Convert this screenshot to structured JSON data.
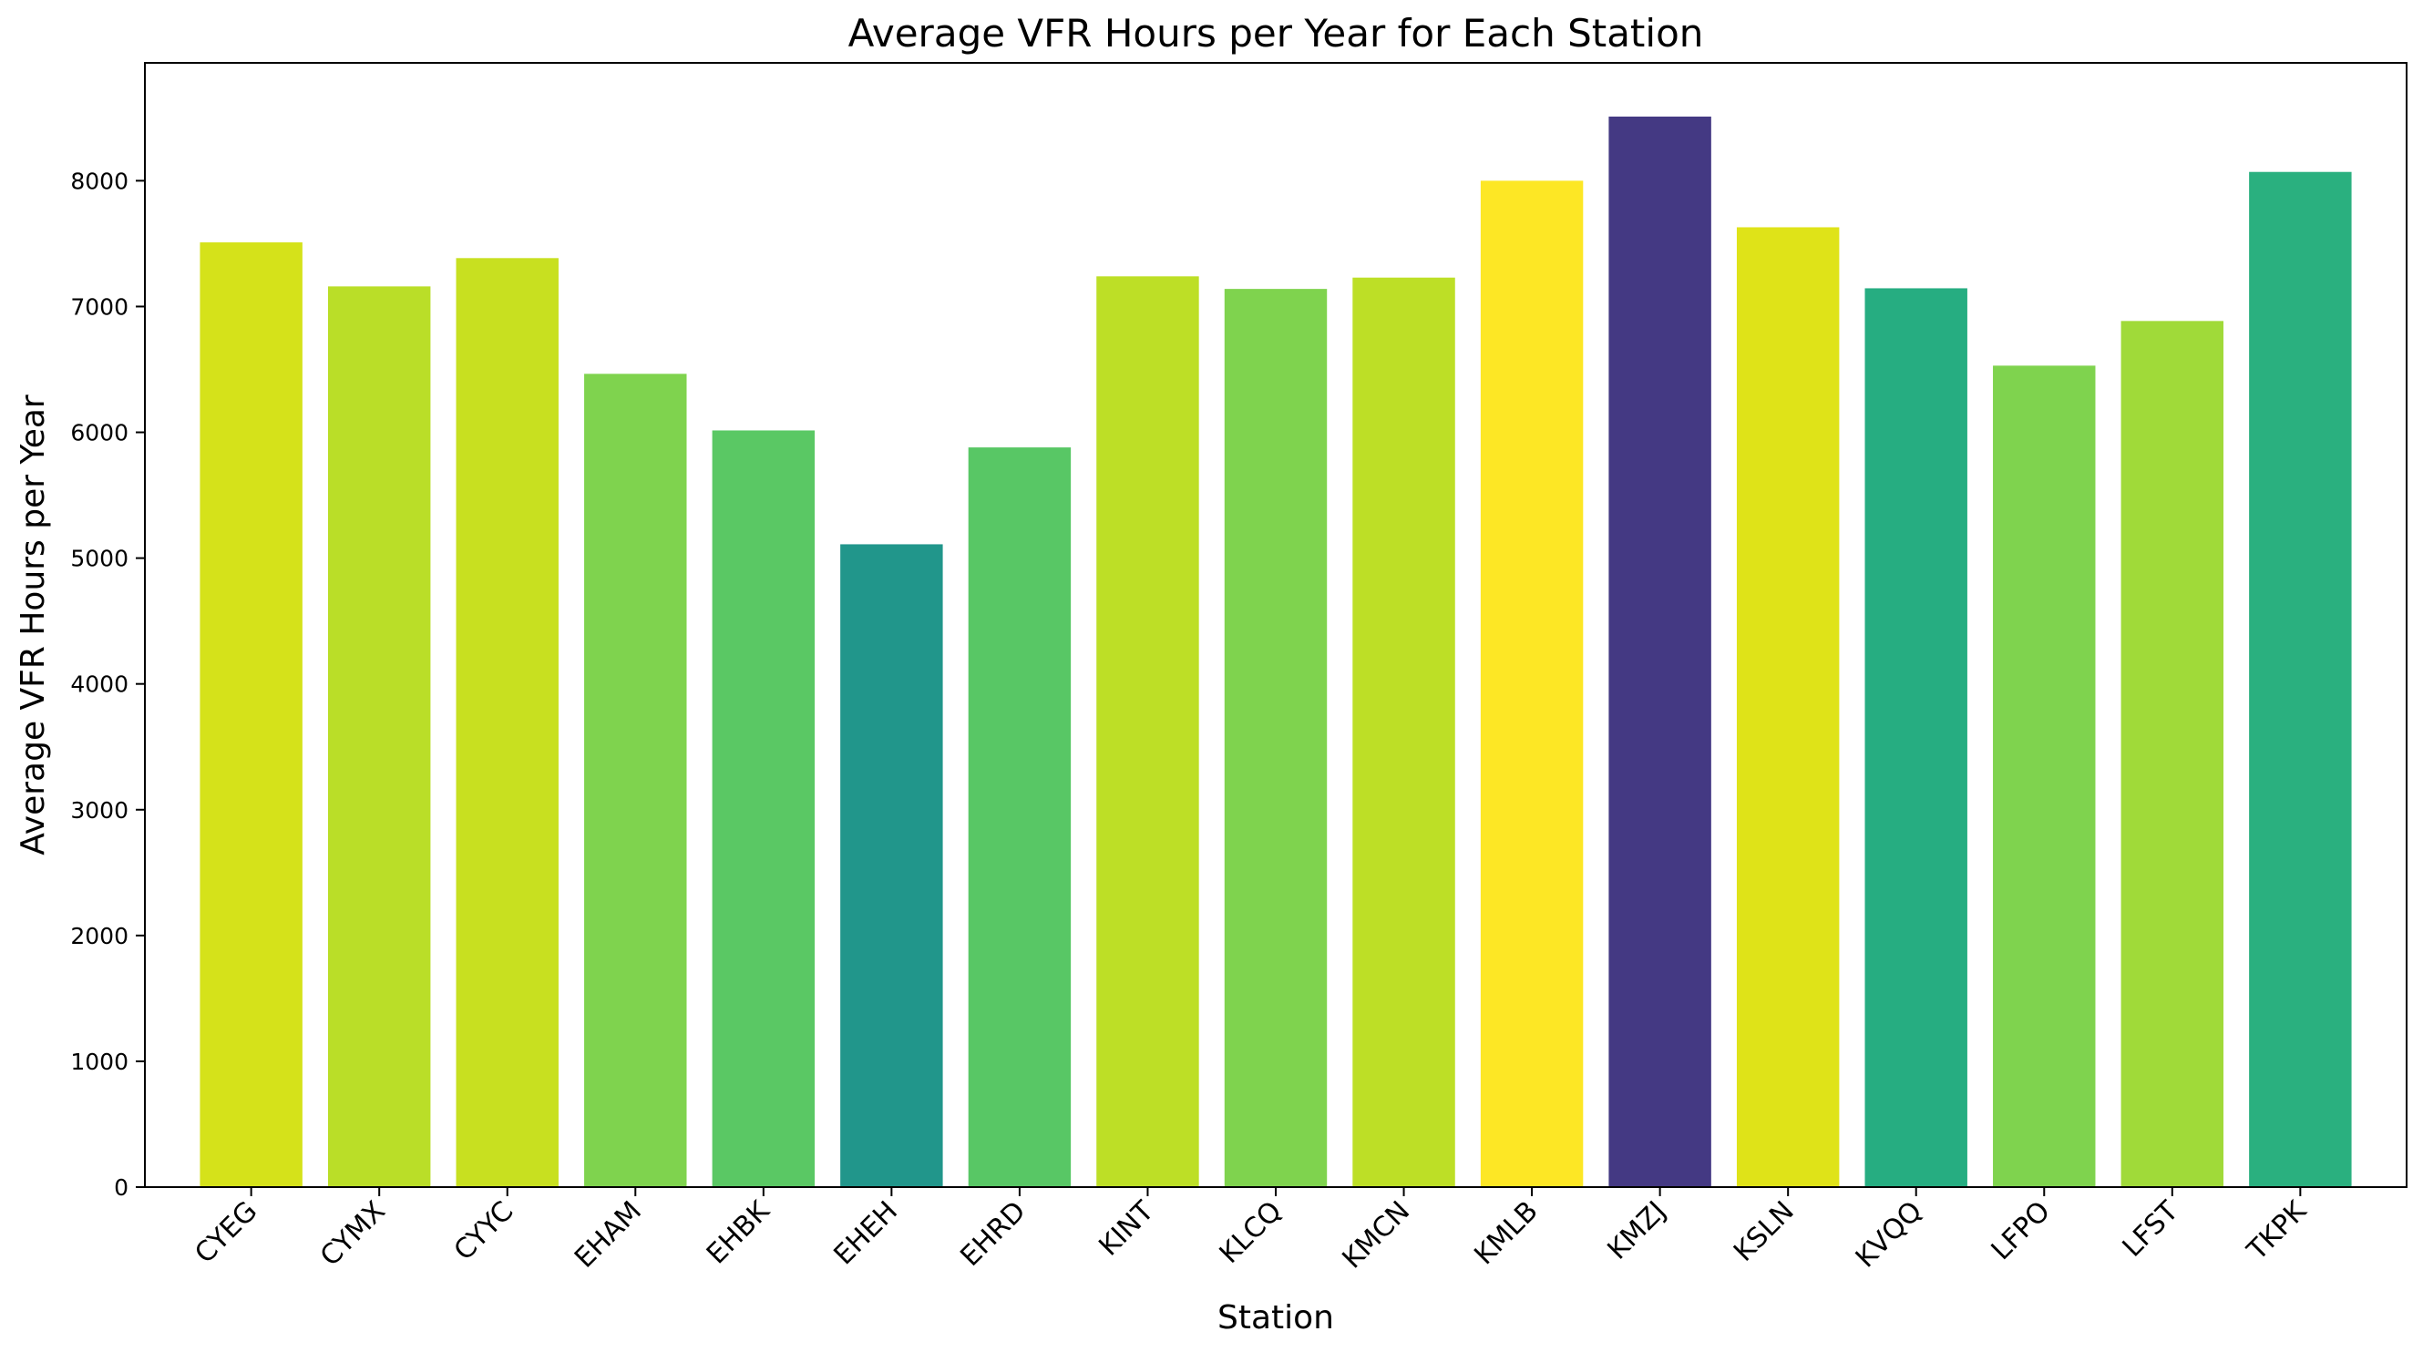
{
  "chart_data": {
    "type": "bar",
    "title": "Average VFR Hours per Year for Each Station",
    "xlabel": "Station",
    "ylabel": "Average VFR Hours per Year",
    "categories": [
      "CYEG",
      "CYMX",
      "CYYC",
      "EHAM",
      "EHBK",
      "EHEH",
      "EHRD",
      "KINT",
      "KLCQ",
      "KMCN",
      "KMLB",
      "KMZJ",
      "KSLN",
      "KVQQ",
      "LFPO",
      "LFST",
      "TKPK"
    ],
    "values": [
      7510,
      7160,
      7385,
      6465,
      6015,
      5110,
      5880,
      7240,
      7140,
      7230,
      8000,
      8510,
      7630,
      7145,
      6530,
      6885,
      8070
    ],
    "colors": [
      "#d5e21a",
      "#bade28",
      "#c8e020",
      "#7fd34e",
      "#5ac864",
      "#21968b",
      "#58c765",
      "#bddf26",
      "#7fd34e",
      "#bddf26",
      "#fde725",
      "#443983",
      "#dfe318",
      "#26ad81",
      "#7fd34e",
      "#a0da39",
      "#2ab07f"
    ],
    "yticks": [
      "0",
      "1000",
      "2000",
      "3000",
      "4000",
      "5000",
      "6000",
      "7000",
      "8000"
    ],
    "ylim": [
      0,
      8937
    ],
    "grid": false,
    "legend": "none"
  }
}
